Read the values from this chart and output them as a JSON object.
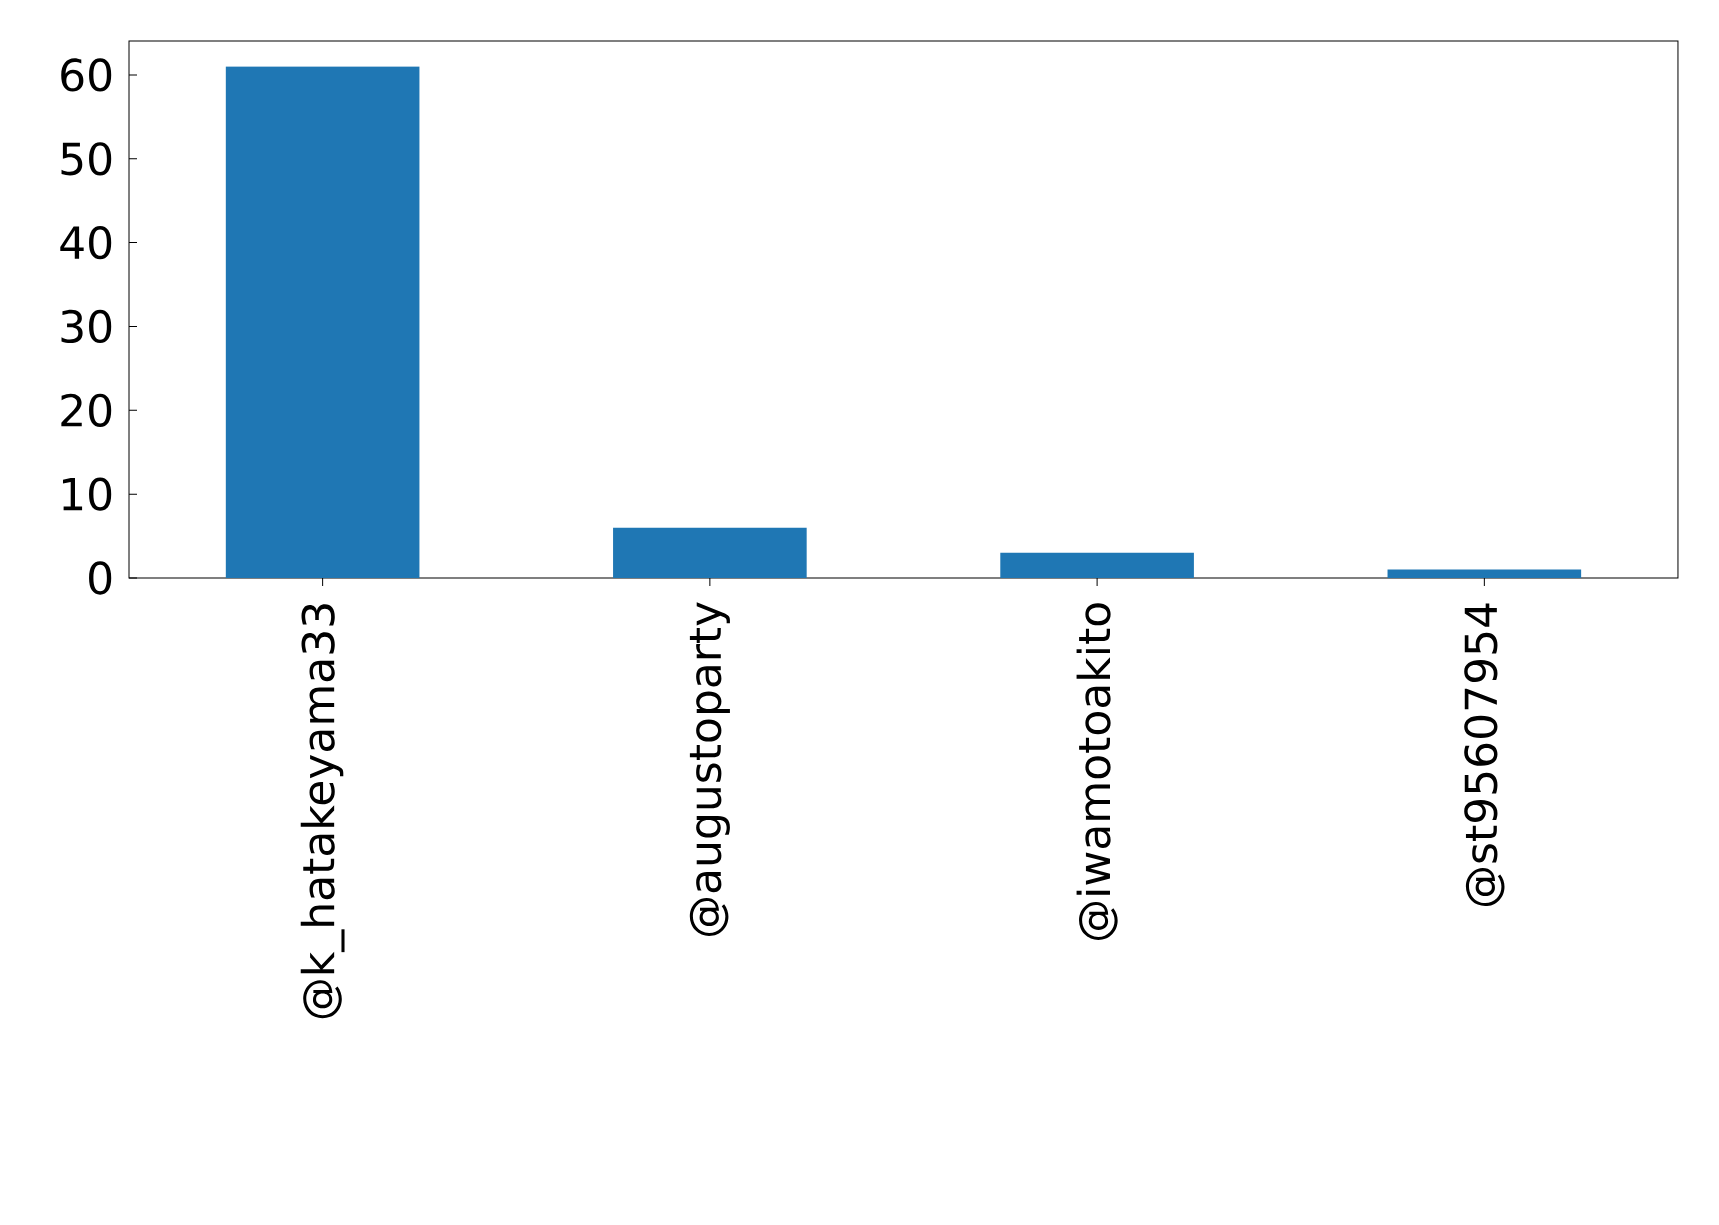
{
  "chart_data": {
    "type": "bar",
    "categories": [
      "@k_hatakeyama33",
      "@augustoparty",
      "@iwamotoakito",
      "@st95607954"
    ],
    "values": [
      61,
      6,
      3,
      1
    ],
    "color": "#1f77b4",
    "ylim": [
      0,
      64.05
    ],
    "yticks": [
      0,
      10,
      20,
      30,
      40,
      50,
      60
    ]
  }
}
